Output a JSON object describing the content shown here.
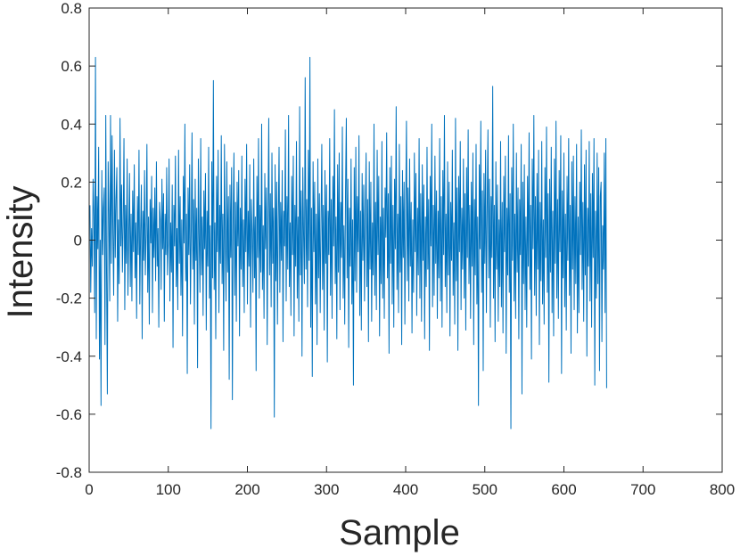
{
  "chart_data": {
    "type": "line",
    "title": "",
    "xlabel": "Sample",
    "ylabel": "Intensity",
    "xlim": [
      0,
      800
    ],
    "ylim": [
      -0.8,
      0.8
    ],
    "xticks": [
      "0",
      "100",
      "200",
      "300",
      "400",
      "500",
      "600",
      "700",
      "800"
    ],
    "yticks": [
      "-0.8",
      "-0.6",
      "-0.4",
      "-0.2",
      "0",
      "0.2",
      "0.4",
      "0.6",
      "0.8"
    ],
    "grid": false,
    "box": true,
    "line_color": "#0072BD",
    "series": [
      {
        "x_start": 1,
        "x_step": 1,
        "y": [
          0.12,
          -0.18,
          0.04,
          -0.09,
          0.21,
          0.08,
          -0.25,
          0.63,
          -0.34,
          0.15,
          -0.03,
          0.32,
          -0.41,
          0.0,
          -0.57,
          0.24,
          -0.05,
          0.11,
          0.18,
          -0.36,
          0.43,
          -0.12,
          -0.53,
          0.27,
          0.09,
          -0.21,
          0.43,
          -0.08,
          0.36,
          0.02,
          -0.19,
          0.31,
          -0.06,
          0.14,
          0.25,
          -0.28,
          0.07,
          -0.15,
          0.42,
          -0.02,
          0.19,
          -0.11,
          0.05,
          0.35,
          -0.24,
          0.12,
          -0.08,
          0.28,
          -0.19,
          0.01,
          0.23,
          -0.16,
          0.09,
          -0.21,
          0.17,
          -0.04,
          0.26,
          -0.13,
          0.06,
          -0.27,
          0.15,
          -0.05,
          0.31,
          -0.22,
          0.03,
          0.19,
          -0.34,
          0.1,
          -0.07,
          0.24,
          -0.12,
          0.02,
          0.33,
          -0.18,
          0.08,
          -0.29,
          0.14,
          -0.01,
          0.22,
          -0.25,
          0.11,
          -0.06,
          0.18,
          -0.14,
          0.27,
          -0.09,
          0.04,
          -0.3,
          0.13,
          0.07,
          -0.17,
          0.21,
          -0.03,
          0.16,
          -0.28,
          0.09,
          -0.05,
          0.25,
          -0.12,
          0.0,
          0.28,
          -0.21,
          0.06,
          -0.11,
          0.19,
          -0.37,
          0.12,
          -0.02,
          0.29,
          -0.16,
          0.04,
          -0.24,
          0.31,
          -0.08,
          0.15,
          -0.19,
          0.07,
          -0.33,
          0.22,
          -0.01,
          0.4,
          -0.14,
          0.09,
          -0.46,
          0.18,
          -0.05,
          0.26,
          -0.22,
          0.03,
          0.37,
          -0.1,
          0.14,
          -0.29,
          0.21,
          -0.07,
          0.11,
          -0.44,
          0.28,
          0.02,
          -0.18,
          0.35,
          -0.12,
          0.08,
          -0.26,
          0.17,
          -0.03,
          0.23,
          -0.31,
          0.1,
          -0.09,
          0.32,
          -0.2,
          0.05,
          -0.65,
          0.27,
          -0.13,
          0.55,
          -0.17,
          0.06,
          -0.34,
          0.22,
          -0.04,
          0.31,
          -0.25,
          0.12,
          -0.08,
          0.36,
          -0.15,
          0.09,
          -0.38,
          0.33,
          0.01,
          -0.21,
          0.27,
          -0.11,
          0.15,
          -0.48,
          0.19,
          -0.06,
          0.25,
          -0.55,
          0.08,
          0.3,
          -0.19,
          0.13,
          -0.28,
          0.2,
          -0.02,
          0.24,
          -0.33,
          0.11,
          -0.1,
          0.29,
          -0.16,
          0.07,
          -0.25,
          0.21,
          -0.04,
          0.33,
          -0.22,
          0.1,
          -0.09,
          0.26,
          -0.3,
          0.14,
          0.02,
          -0.18,
          0.28,
          -0.13,
          0.08,
          -0.45,
          0.22,
          -0.06,
          0.35,
          -0.2,
          0.12,
          -0.11,
          0.4,
          -0.17,
          0.05,
          -0.27,
          0.23,
          -0.03,
          0.18,
          -0.36,
          0.09,
          0.42,
          -0.12,
          0.16,
          -0.23,
          0.3,
          -0.08,
          0.11,
          -0.61,
          0.26,
          -0.14,
          0.2,
          -0.29,
          0.07,
          0.32,
          -0.18,
          0.13,
          -0.07,
          0.24,
          -0.35,
          0.1,
          -0.02,
          0.38,
          -0.21,
          0.15,
          -0.1,
          0.43,
          -0.16,
          0.06,
          -0.26,
          0.22,
          -0.05,
          0.29,
          -0.33,
          0.12,
          -0.09,
          0.34,
          -0.2,
          0.08,
          -0.28,
          0.46,
          -0.12,
          0.17,
          -0.4,
          0.25,
          0.02,
          -0.15,
          0.56,
          -0.1,
          0.14,
          -0.23,
          0.31,
          -0.07,
          0.63,
          -0.3,
          0.11,
          -0.47,
          0.27,
          -0.04,
          0.2,
          -0.22,
          0.09,
          -0.36,
          0.28,
          -0.13,
          0.16,
          -0.25,
          0.06,
          0.33,
          -0.17,
          0.12,
          -0.31,
          0.24,
          -0.08,
          0.19,
          -0.42,
          0.1,
          -0.05,
          0.35,
          -0.19,
          0.14,
          -0.27,
          0.22,
          -0.02,
          0.45,
          -0.15,
          0.08,
          -0.34,
          0.26,
          -0.11,
          0.3,
          -0.24,
          0.13,
          -0.06,
          0.39,
          -0.2,
          0.05,
          -0.29,
          0.17,
          0.42,
          -0.13,
          0.21,
          -0.37,
          0.11,
          -0.09,
          0.28,
          -0.22,
          0.07,
          -0.5,
          0.25,
          -0.14,
          0.32,
          -0.18,
          0.15,
          -0.04,
          0.36,
          -0.26,
          0.1,
          -0.31,
          0.23,
          -0.07,
          0.19,
          -0.21,
          0.09,
          0.3,
          -0.16,
          0.14,
          -0.35,
          0.27,
          -0.1,
          0.2,
          -0.28,
          0.06,
          -0.12,
          0.4,
          -0.19,
          0.13,
          -0.24,
          0.31,
          -0.05,
          0.22,
          -0.33,
          0.08,
          -0.15,
          0.34,
          -0.2,
          0.11,
          -0.27,
          0.18,
          0.01,
          0.37,
          -0.13,
          0.16,
          -0.39,
          0.25,
          -0.08,
          0.29,
          -0.22,
          0.12,
          -0.3,
          0.21,
          -0.03,
          0.46,
          -0.17,
          0.09,
          -0.25,
          0.33,
          -0.11,
          0.15,
          -0.36,
          0.24,
          -0.06,
          0.2,
          -0.29,
          0.1,
          0.41,
          -0.14,
          0.18,
          -0.21,
          0.28,
          -0.09,
          0.13,
          -0.32,
          0.07,
          -0.18,
          0.3,
          -0.04,
          0.23,
          -0.26,
          0.11,
          -0.12,
          0.35,
          -0.2,
          0.16,
          -0.28,
          0.26,
          -0.07,
          0.19,
          -0.34,
          0.08,
          -0.16,
          0.32,
          -0.1,
          0.14,
          -0.38,
          0.22,
          -0.02,
          0.4,
          -0.23,
          0.12,
          -0.19,
          0.29,
          -0.08,
          0.17,
          -0.27,
          0.1,
          -0.13,
          0.35,
          -0.21,
          0.15,
          -0.3,
          0.24,
          -0.05,
          0.43,
          -0.16,
          0.09,
          -0.25,
          0.27,
          -0.12,
          0.2,
          -0.33,
          0.13,
          -0.07,
          0.31,
          -0.19,
          0.06,
          -0.29,
          0.42,
          -0.14,
          0.18,
          -0.38,
          0.22,
          -0.04,
          0.34,
          -0.24,
          0.11,
          -0.1,
          0.28,
          -0.2,
          0.16,
          -0.31,
          0.25,
          -0.06,
          0.38,
          -0.15,
          0.12,
          -0.27,
          0.2,
          -0.09,
          0.3,
          -0.36,
          0.14,
          -0.12,
          0.33,
          -0.22,
          0.08,
          -0.57,
          0.26,
          -0.03,
          0.41,
          -0.18,
          0.17,
          -0.45,
          0.23,
          -0.08,
          0.31,
          -0.25,
          0.1,
          0.38,
          -0.13,
          0.21,
          -0.3,
          0.15,
          -0.06,
          0.53,
          -0.2,
          0.12,
          -0.35,
          0.27,
          -0.1,
          0.19,
          -0.28,
          0.07,
          -0.16,
          0.34,
          -0.23,
          0.13,
          -0.32,
          0.22,
          -0.04,
          0.29,
          -0.39,
          0.11,
          -0.12,
          0.36,
          -0.18,
          0.16,
          -0.65,
          0.25,
          -0.07,
          0.4,
          -0.21,
          0.09,
          -0.27,
          0.3,
          -0.11,
          0.18,
          -0.34,
          0.14,
          -0.05,
          0.33,
          -0.53,
          0.2,
          -0.15,
          0.26,
          -0.24,
          0.08,
          -0.3,
          0.22,
          -0.09,
          0.37,
          -0.17,
          0.12,
          -0.41,
          0.28,
          -0.03,
          0.43,
          -0.19,
          0.15,
          -0.26,
          0.23,
          -0.1,
          0.31,
          -0.36,
          0.13,
          -0.14,
          0.34,
          -0.22,
          0.07,
          -0.29,
          0.25,
          -0.06,
          0.39,
          -0.18,
          0.16,
          -0.49,
          0.21,
          -0.11,
          0.32,
          -0.25,
          0.1,
          -0.33,
          0.28,
          -0.08,
          0.41,
          -0.2,
          0.14,
          -0.27,
          0.24,
          -0.04,
          0.36,
          -0.46,
          0.17,
          -0.13,
          0.3,
          -0.23,
          0.09,
          -0.31,
          0.22,
          -0.07,
          0.35,
          -0.19,
          0.12,
          -0.39,
          0.27,
          -0.1,
          0.29,
          -0.24,
          0.15,
          -0.15,
          0.33,
          -0.32,
          0.08,
          -0.25,
          0.2,
          -0.05,
          0.38,
          -0.17,
          0.13,
          -0.28,
          0.26,
          -0.12,
          0.31,
          -0.4,
          0.11,
          -0.09,
          0.34,
          -0.21,
          0.16,
          -0.3,
          0.23,
          -0.06,
          0.35,
          -0.5,
          0.1,
          -0.2,
          0.3,
          -0.15,
          0.25,
          -0.45,
          0.15,
          0.2,
          -0.35,
          0.05,
          -0.1,
          0.3,
          -0.25,
          0.35,
          -0.51
        ]
      }
    ]
  }
}
